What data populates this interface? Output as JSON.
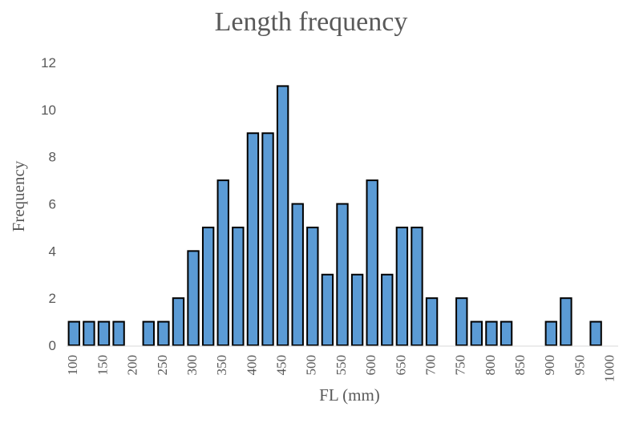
{
  "chart_data": {
    "type": "bar",
    "title": "Length frequency",
    "xlabel": "FL (mm)",
    "ylabel": "Frequency",
    "ylim": [
      0,
      12
    ],
    "yticks": [
      0,
      2,
      4,
      6,
      8,
      10,
      12
    ],
    "grid": false,
    "categories": [
      100,
      125,
      150,
      175,
      200,
      225,
      250,
      275,
      300,
      325,
      350,
      375,
      400,
      425,
      450,
      475,
      500,
      525,
      550,
      575,
      600,
      625,
      650,
      675,
      700,
      725,
      750,
      775,
      800,
      825,
      850,
      875,
      900,
      925,
      950,
      975,
      1000
    ],
    "values": [
      1,
      1,
      1,
      1,
      0,
      1,
      1,
      2,
      4,
      5,
      7,
      5,
      9,
      9,
      11,
      6,
      5,
      3,
      6,
      3,
      7,
      3,
      5,
      5,
      2,
      0,
      2,
      1,
      1,
      1,
      0,
      0,
      1,
      2,
      0,
      1,
      0
    ],
    "xtick_labels": [
      "100",
      "150",
      "200",
      "250",
      "300",
      "350",
      "400",
      "450",
      "500",
      "550",
      "600",
      "650",
      "700",
      "750",
      "800",
      "850",
      "900",
      "950",
      "1000"
    ],
    "bar_color": "#5b9bd5",
    "bar_edge_color": "#000000"
  }
}
